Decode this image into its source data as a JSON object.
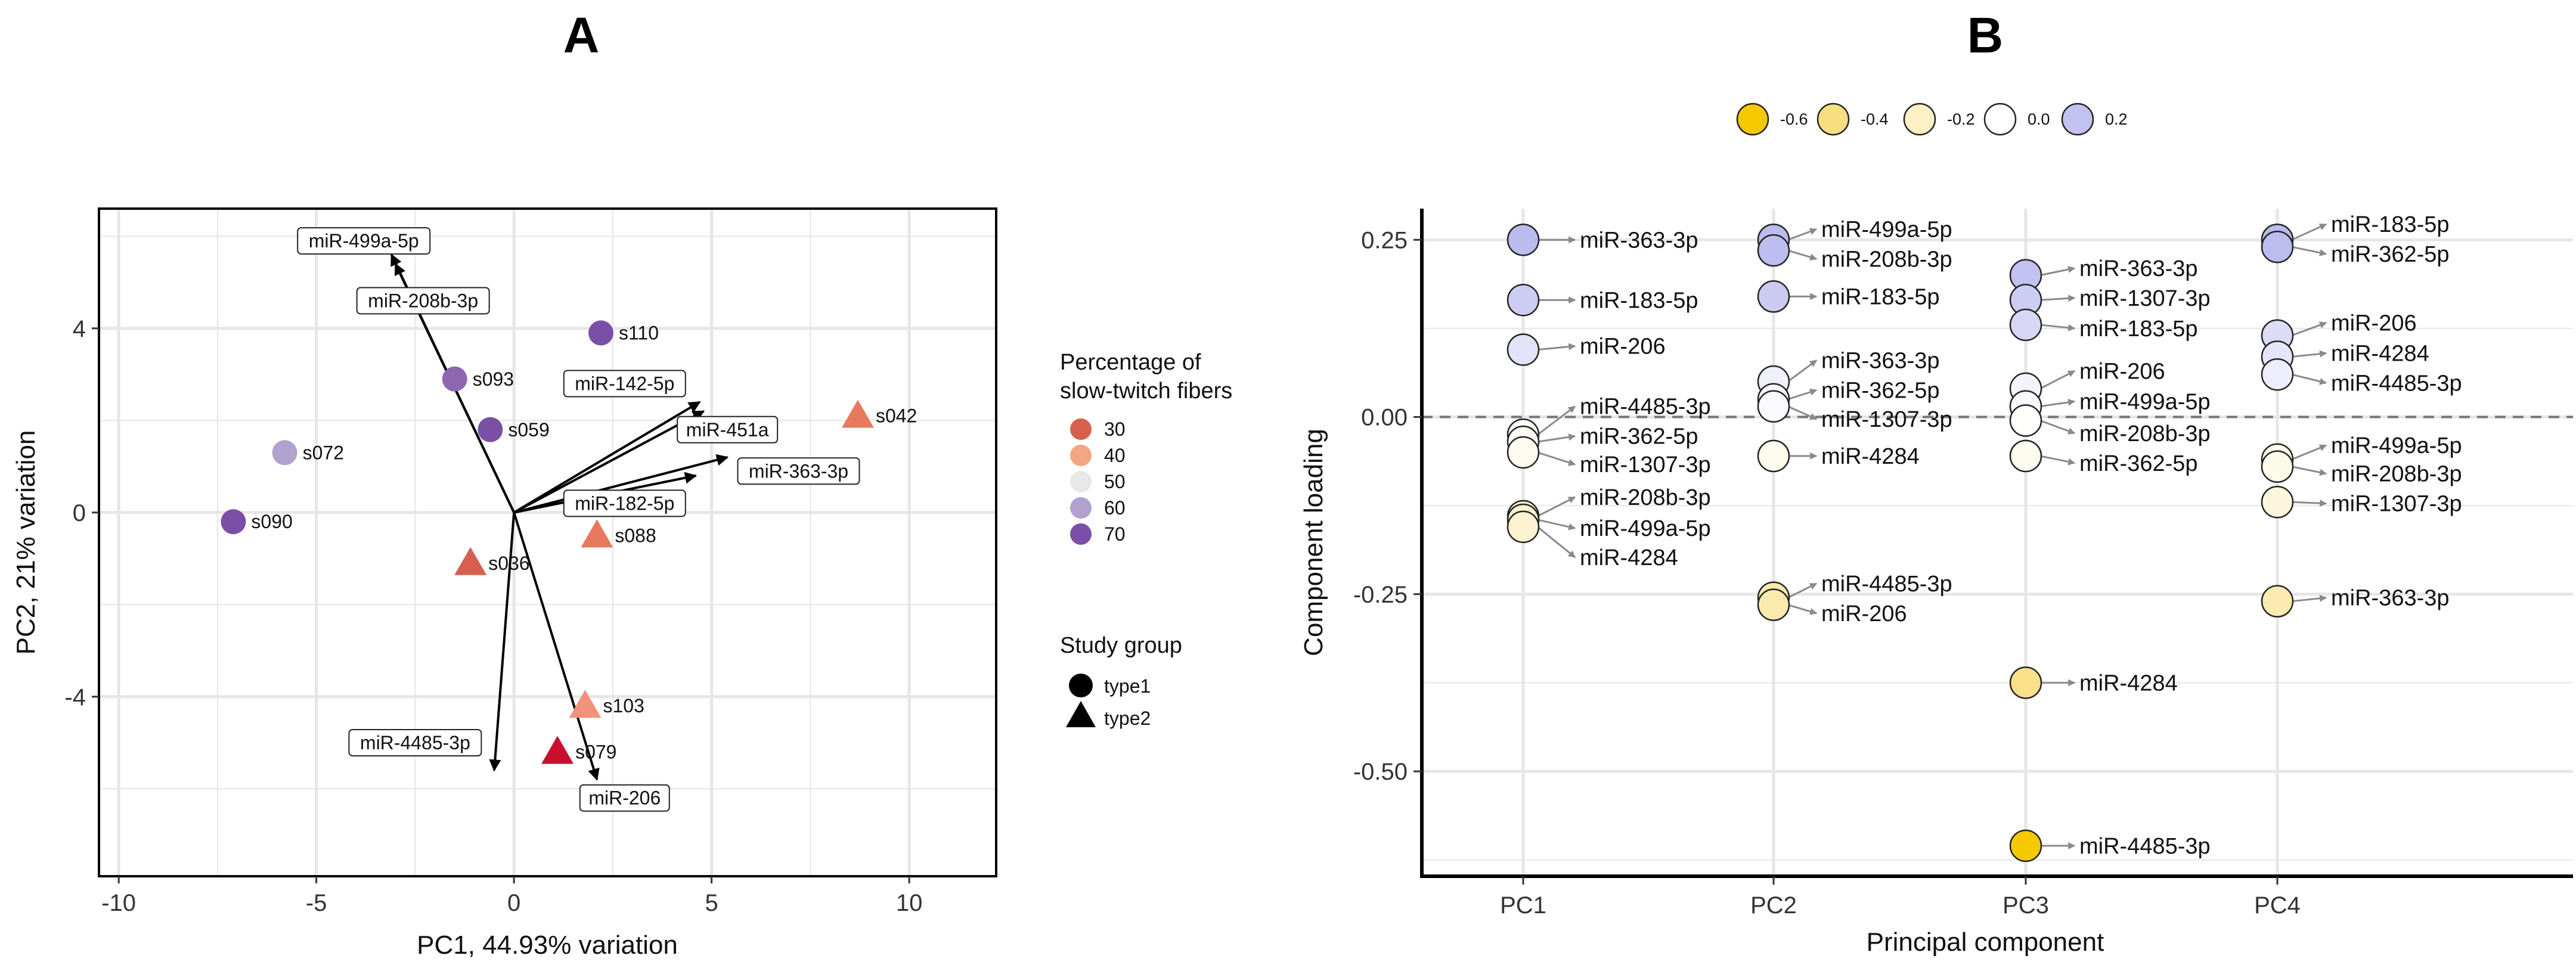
{
  "colors": {
    "grid": "#e6e6e6",
    "fiber_30": "#d6604d",
    "fiber_40": "#f4a582",
    "fiber_50": "#e8e8e8",
    "fiber_60": "#b2a0cf",
    "fiber_70": "#7b4fa5",
    "loading_scale": [
      "#f5c800",
      "#f8de80",
      "#fcf0c4",
      "#ffffff",
      "#c2c2f0"
    ]
  },
  "chart_data": [
    {
      "panel": "A",
      "type": "scatter",
      "title": "A",
      "xlabel": "PC1, 44.93% variation",
      "ylabel": "PC2, 21% variation",
      "xlim": [
        -10.5,
        12.2
      ],
      "ylim": [
        -7.9,
        6.6
      ],
      "xticks": [
        -10,
        -5,
        0,
        5,
        10
      ],
      "yticks": [
        -4,
        0,
        4
      ],
      "legend_fiber": {
        "title": [
          "Percentage of",
          "slow-twitch fibers"
        ],
        "entries": [
          {
            "label": "30",
            "value": 30,
            "color": "#d6604d"
          },
          {
            "label": "40",
            "value": 40,
            "color": "#f4a582"
          },
          {
            "label": "50",
            "value": 50,
            "color": "#e8e8e8"
          },
          {
            "label": "60",
            "value": 60,
            "color": "#b2a0cf"
          },
          {
            "label": "70",
            "value": 70,
            "color": "#7b4fa5"
          }
        ]
      },
      "legend_group": {
        "title": "Study group",
        "entries": [
          {
            "label": "type1",
            "shape": "circle"
          },
          {
            "label": "type2",
            "shape": "triangle"
          }
        ]
      },
      "samples": [
        {
          "id": "s110",
          "x": 2.2,
          "y": 3.9,
          "group": "type1",
          "color": "#7b4fa5"
        },
        {
          "id": "s093",
          "x": -1.5,
          "y": 2.9,
          "group": "type1",
          "color": "#8e67b3"
        },
        {
          "id": "s059",
          "x": -0.6,
          "y": 1.8,
          "group": "type1",
          "color": "#7b4fa5"
        },
        {
          "id": "s072",
          "x": -5.8,
          "y": 1.3,
          "group": "type1",
          "color": "#b2a0cf"
        },
        {
          "id": "s090",
          "x": -7.1,
          "y": -0.2,
          "group": "type1",
          "color": "#7b4fa5"
        },
        {
          "id": "s042",
          "x": 8.7,
          "y": 2.1,
          "group": "type2",
          "color": "#e67a5e"
        },
        {
          "id": "s088",
          "x": 2.1,
          "y": -0.5,
          "group": "type2",
          "color": "#e67a5e"
        },
        {
          "id": "s036",
          "x": -1.1,
          "y": -1.1,
          "group": "type2",
          "color": "#d6604d"
        },
        {
          "id": "s103",
          "x": 1.8,
          "y": -4.2,
          "group": "type2",
          "color": "#f0937a"
        },
        {
          "id": "s079",
          "x": 1.1,
          "y": -5.2,
          "group": "type2",
          "color": "#c8102e"
        }
      ],
      "vectors": [
        {
          "name": "miR-499a-5p",
          "x": -3.1,
          "y": 5.6,
          "lx": -3.8,
          "ly": 5.9
        },
        {
          "name": "miR-208b-3p",
          "x": -3.0,
          "y": 5.4,
          "lx": -2.3,
          "ly": 4.6
        },
        {
          "name": "miR-142-5p",
          "x": 4.7,
          "y": 2.4,
          "lx": 2.8,
          "ly": 2.8
        },
        {
          "name": "miR-451a",
          "x": 4.8,
          "y": 2.2,
          "lx": 5.4,
          "ly": 1.8
        },
        {
          "name": "miR-363-3p",
          "x": 5.4,
          "y": 1.2,
          "lx": 7.2,
          "ly": 0.9
        },
        {
          "name": "miR-182-5p",
          "x": 4.6,
          "y": 0.8,
          "lx": 2.8,
          "ly": 0.2
        },
        {
          "name": "miR-4485-3p",
          "x": -0.5,
          "y": -5.6,
          "lx": -2.5,
          "ly": -5.0
        },
        {
          "name": "miR-206",
          "x": 2.1,
          "y": -5.8,
          "lx": 2.8,
          "ly": -6.2
        }
      ]
    },
    {
      "panel": "B",
      "type": "scatter",
      "title": "B",
      "xlabel": "Principal component",
      "ylabel": "Component loading",
      "categories": [
        "PC1",
        "PC2",
        "PC3",
        "PC4"
      ],
      "ylim": [
        -0.648,
        0.294
      ],
      "yticks": [
        0.25,
        0.0,
        -0.25,
        -0.5
      ],
      "ytick_labels": [
        "0.25",
        "0.00",
        "-0.25",
        "-0.50"
      ],
      "reference_line": 0.0,
      "legend": {
        "entries": [
          {
            "label": "-0.6",
            "color": "#f5c800"
          },
          {
            "label": "-0.4",
            "color": "#f8de80"
          },
          {
            "label": "-0.2",
            "color": "#fcf0c4"
          },
          {
            "label": "0.0",
            "color": "#ffffff"
          },
          {
            "label": "0.2",
            "color": "#c2c2f0"
          }
        ]
      },
      "points": [
        {
          "pc": "PC1",
          "mirna": "miR-363-3p",
          "value": 0.25,
          "ly": 0.25
        },
        {
          "pc": "PC1",
          "mirna": "miR-183-5p",
          "value": 0.165,
          "ly": 0.165
        },
        {
          "pc": "PC1",
          "mirna": "miR-206",
          "value": 0.095,
          "ly": 0.1
        },
        {
          "pc": "PC1",
          "mirna": "miR-4485-3p",
          "value": -0.025,
          "ly": 0.015
        },
        {
          "pc": "PC1",
          "mirna": "miR-362-5p",
          "value": -0.035,
          "ly": -0.027
        },
        {
          "pc": "PC1",
          "mirna": "miR-1307-3p",
          "value": -0.05,
          "ly": -0.067
        },
        {
          "pc": "PC1",
          "mirna": "miR-208b-3p",
          "value": -0.14,
          "ly": -0.113
        },
        {
          "pc": "PC1",
          "mirna": "miR-499a-5p",
          "value": -0.145,
          "ly": -0.157
        },
        {
          "pc": "PC1",
          "mirna": "miR-4284",
          "value": -0.155,
          "ly": -0.198
        },
        {
          "pc": "PC2",
          "mirna": "miR-499a-5p",
          "value": 0.25,
          "ly": 0.265
        },
        {
          "pc": "PC2",
          "mirna": "miR-208b-3p",
          "value": 0.235,
          "ly": 0.223
        },
        {
          "pc": "PC2",
          "mirna": "miR-183-5p",
          "value": 0.17,
          "ly": 0.17
        },
        {
          "pc": "PC2",
          "mirna": "miR-363-3p",
          "value": 0.05,
          "ly": 0.08
        },
        {
          "pc": "PC2",
          "mirna": "miR-362-5p",
          "value": 0.025,
          "ly": 0.038
        },
        {
          "pc": "PC2",
          "mirna": "miR-1307-3p",
          "value": 0.015,
          "ly": -0.003
        },
        {
          "pc": "PC2",
          "mirna": "miR-4284",
          "value": -0.055,
          "ly": -0.055
        },
        {
          "pc": "PC2",
          "mirna": "miR-4485-3p",
          "value": -0.255,
          "ly": -0.235
        },
        {
          "pc": "PC2",
          "mirna": "miR-206",
          "value": -0.265,
          "ly": -0.277
        },
        {
          "pc": "PC3",
          "mirna": "miR-363-3p",
          "value": 0.2,
          "ly": 0.21
        },
        {
          "pc": "PC3",
          "mirna": "miR-1307-3p",
          "value": 0.165,
          "ly": 0.168
        },
        {
          "pc": "PC3",
          "mirna": "miR-183-5p",
          "value": 0.13,
          "ly": 0.125
        },
        {
          "pc": "PC3",
          "mirna": "miR-206",
          "value": 0.04,
          "ly": 0.065
        },
        {
          "pc": "PC3",
          "mirna": "miR-499a-5p",
          "value": 0.015,
          "ly": 0.022
        },
        {
          "pc": "PC3",
          "mirna": "miR-208b-3p",
          "value": -0.005,
          "ly": -0.023
        },
        {
          "pc": "PC3",
          "mirna": "miR-362-5p",
          "value": -0.055,
          "ly": -0.065
        },
        {
          "pc": "PC3",
          "mirna": "miR-4284",
          "value": -0.375,
          "ly": -0.375
        },
        {
          "pc": "PC3",
          "mirna": "miR-4485-3p",
          "value": -0.605,
          "ly": -0.605
        },
        {
          "pc": "PC4",
          "mirna": "miR-183-5p",
          "value": 0.25,
          "ly": 0.272
        },
        {
          "pc": "PC4",
          "mirna": "miR-362-5p",
          "value": 0.24,
          "ly": 0.23
        },
        {
          "pc": "PC4",
          "mirna": "miR-206",
          "value": 0.115,
          "ly": 0.133
        },
        {
          "pc": "PC4",
          "mirna": "miR-4284",
          "value": 0.085,
          "ly": 0.09
        },
        {
          "pc": "PC4",
          "mirna": "miR-4485-3p",
          "value": 0.06,
          "ly": 0.048
        },
        {
          "pc": "PC4",
          "mirna": "miR-499a-5p",
          "value": -0.06,
          "ly": -0.04
        },
        {
          "pc": "PC4",
          "mirna": "miR-208b-3p",
          "value": -0.07,
          "ly": -0.08
        },
        {
          "pc": "PC4",
          "mirna": "miR-1307-3p",
          "value": -0.12,
          "ly": -0.122
        },
        {
          "pc": "PC4",
          "mirna": "miR-363-3p",
          "value": -0.26,
          "ly": -0.255
        }
      ]
    }
  ]
}
